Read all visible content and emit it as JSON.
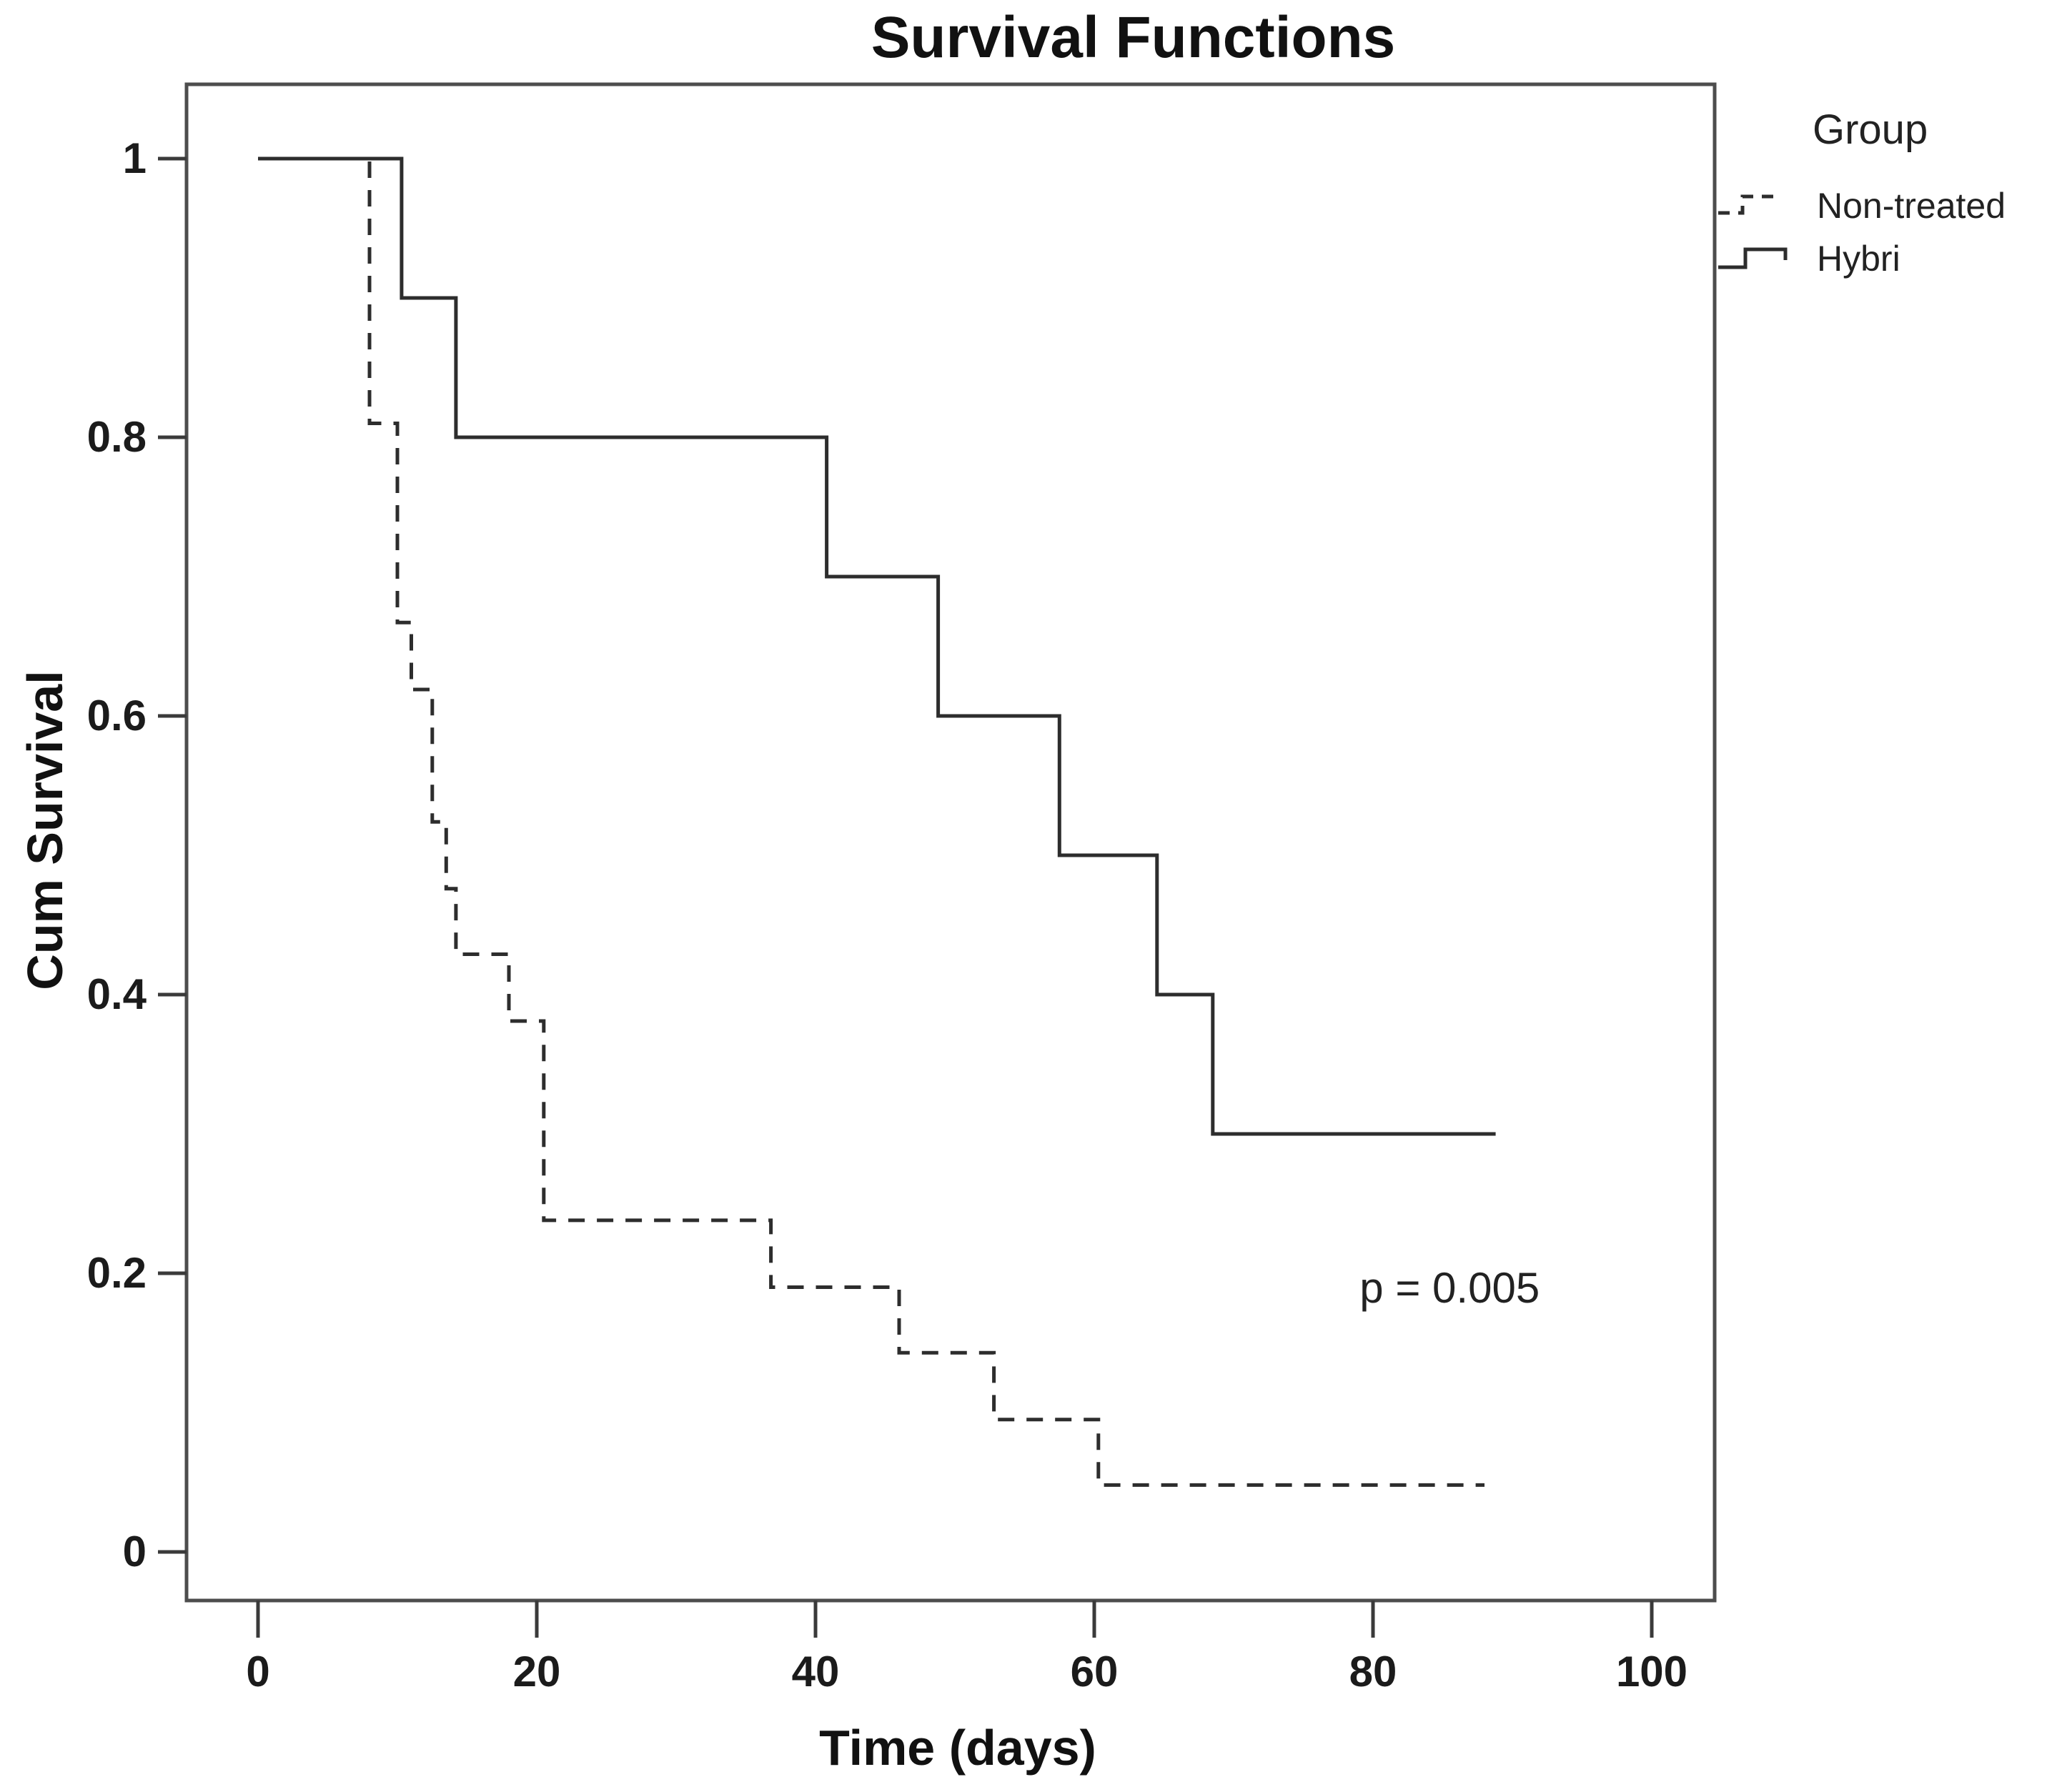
{
  "chart_data": {
    "type": "line",
    "subtype": "kaplan-meier-step",
    "title": "Survival Functions",
    "xlabel": "Time (days)",
    "ylabel": "Cum Survival",
    "xlim": [
      0,
      100
    ],
    "ylim": [
      0,
      1
    ],
    "x_ticks": [
      0,
      20,
      40,
      60,
      80,
      100
    ],
    "y_ticks": [
      1,
      0.8,
      0.6,
      0.4,
      0.2,
      0
    ],
    "grid": false,
    "legend_title": "Group",
    "legend_position": "outside-top-right",
    "annotation": {
      "text": "p = 0.005",
      "x": 85.5,
      "y": 0.19
    },
    "line_color": "#2d2d2d",
    "series": [
      {
        "name": "Non-treated",
        "line_style": "dashed",
        "points": [
          [
            0,
            1.0
          ],
          [
            8,
            1.0
          ],
          [
            8,
            0.81
          ],
          [
            10,
            0.81
          ],
          [
            10,
            0.667
          ],
          [
            11,
            0.667
          ],
          [
            11,
            0.619
          ],
          [
            12.5,
            0.619
          ],
          [
            12.5,
            0.524
          ],
          [
            13.5,
            0.524
          ],
          [
            13.5,
            0.476
          ],
          [
            14.2,
            0.476
          ],
          [
            14.2,
            0.429
          ],
          [
            18,
            0.429
          ],
          [
            18,
            0.381
          ],
          [
            20.5,
            0.381
          ],
          [
            20.5,
            0.238
          ],
          [
            36.8,
            0.238
          ],
          [
            36.8,
            0.19
          ],
          [
            46,
            0.19
          ],
          [
            46,
            0.143
          ],
          [
            52.8,
            0.143
          ],
          [
            52.8,
            0.095
          ],
          [
            60.3,
            0.095
          ],
          [
            60.3,
            0.048
          ],
          [
            88,
            0.048
          ]
        ]
      },
      {
        "name": "Hybri",
        "line_style": "solid",
        "points": [
          [
            0,
            1.0
          ],
          [
            10.3,
            1.0
          ],
          [
            10.3,
            0.9
          ],
          [
            14.2,
            0.9
          ],
          [
            14.2,
            0.8
          ],
          [
            40.8,
            0.8
          ],
          [
            40.8,
            0.7
          ],
          [
            48.8,
            0.7
          ],
          [
            48.8,
            0.6
          ],
          [
            57.5,
            0.6
          ],
          [
            57.5,
            0.5
          ],
          [
            64.5,
            0.5
          ],
          [
            64.5,
            0.4
          ],
          [
            68.5,
            0.4
          ],
          [
            68.5,
            0.3
          ],
          [
            88.8,
            0.3
          ]
        ]
      }
    ]
  }
}
